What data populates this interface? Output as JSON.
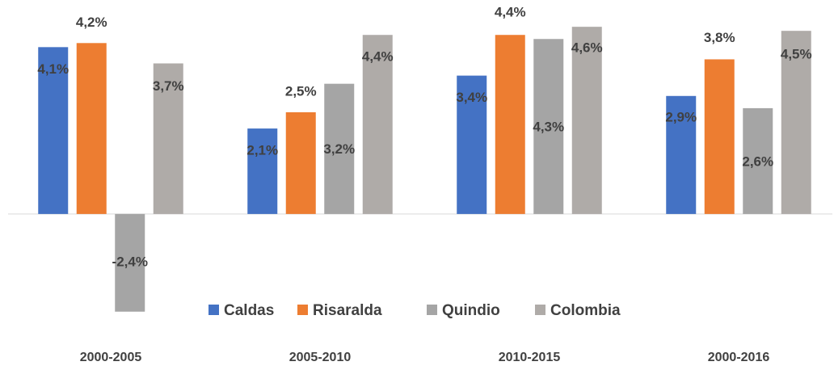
{
  "chart_data": {
    "type": "bar",
    "categories": [
      "2000-2005",
      "2005-2010",
      "2010-2015",
      "2000-2016"
    ],
    "ylim": [
      -3,
      5
    ],
    "series": [
      {
        "name": "Caldas",
        "color": "#4472c4",
        "values": [
          4.1,
          2.1,
          3.4,
          2.9
        ],
        "value_labels": [
          "4,1%",
          "2,1%",
          "3,4%",
          "2,9%"
        ]
      },
      {
        "name": "Risaralda",
        "color": "#ed7d31",
        "values": [
          4.2,
          2.5,
          4.4,
          3.8
        ],
        "value_labels": [
          "4,2%",
          "2,5%",
          "4,4%",
          "3,8%"
        ]
      },
      {
        "name": "Quindio",
        "color": "#a5a5a5",
        "values": [
          -2.4,
          3.2,
          4.3,
          2.6
        ],
        "value_labels": [
          "-2,4%",
          "3,2%",
          "4,3%",
          "2,6%"
        ]
      },
      {
        "name": "Colombia",
        "color": "#afaba8",
        "values": [
          3.7,
          4.4,
          4.6,
          4.5
        ],
        "value_labels": [
          "3,7%",
          "4,4%",
          "4,6%",
          "4,5%"
        ]
      }
    ]
  }
}
